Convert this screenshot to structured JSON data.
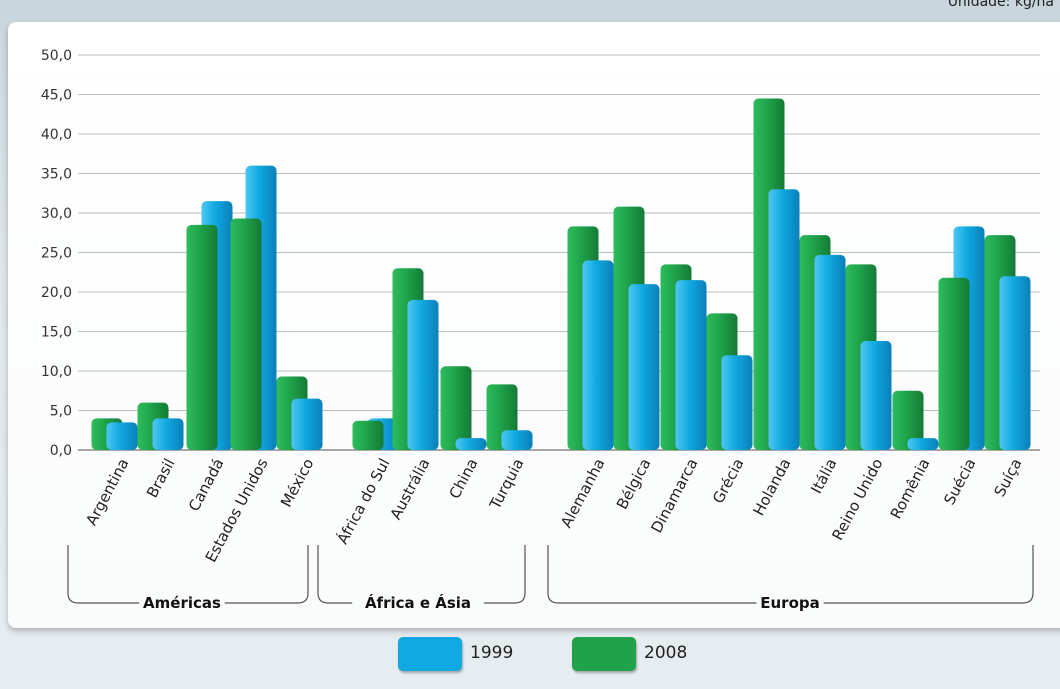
{
  "unit_label": "Unidade: kg/ha",
  "colors": {
    "series_1999": "#10a8e0",
    "series_2008": "#1fa24a"
  },
  "legend": [
    {
      "label": "1999",
      "color": "#10a8e0"
    },
    {
      "label": "2008",
      "color": "#1fa24a"
    }
  ],
  "chart_data": {
    "type": "bar",
    "title": "",
    "xlabel": "",
    "ylabel": "",
    "ylim": [
      0,
      50
    ],
    "y_ticks": [
      "0,0",
      "5,0",
      "10,0",
      "15,0",
      "20,0",
      "25,0",
      "30,0",
      "35,0",
      "40,0",
      "45,0",
      "50,0"
    ],
    "grid": true,
    "legend_position": "bottom",
    "categories": [
      "Argentina",
      "Brasil",
      "Canadá",
      "Estados Unidos",
      "México",
      "África do Sul",
      "Austrália",
      "China",
      "Turquia",
      "Alemanha",
      "Bélgica",
      "Dinamarca",
      "Grécia",
      "Holanda",
      "Itália",
      "Reino Unido",
      "Romênia",
      "Suécia",
      "Suíça"
    ],
    "groups": [
      {
        "label": "Américas",
        "categories": [
          "Argentina",
          "Brasil",
          "Canadá",
          "Estados Unidos",
          "México"
        ]
      },
      {
        "label": "África e Ásia",
        "categories": [
          "África do Sul",
          "Austrália",
          "China",
          "Turquia"
        ]
      },
      {
        "label": "Europa",
        "categories": [
          "Alemanha",
          "Bélgica",
          "Dinamarca",
          "Grécia",
          "Holanda",
          "Itália",
          "Reino Unido",
          "Romênia",
          "Suécia",
          "Suíça"
        ]
      }
    ],
    "series": [
      {
        "name": "1999",
        "values": [
          3.5,
          4.0,
          31.5,
          36.0,
          6.5,
          4.0,
          19.0,
          1.5,
          2.5,
          24.0,
          21.0,
          21.5,
          12.0,
          33.0,
          24.7,
          13.8,
          1.5,
          28.3,
          22.0
        ]
      },
      {
        "name": "2008",
        "values": [
          4.0,
          6.0,
          28.5,
          29.3,
          9.3,
          3.7,
          23.0,
          10.6,
          8.3,
          28.3,
          30.8,
          23.5,
          17.3,
          44.5,
          27.2,
          23.5,
          7.5,
          21.8,
          27.2
        ]
      }
    ]
  }
}
